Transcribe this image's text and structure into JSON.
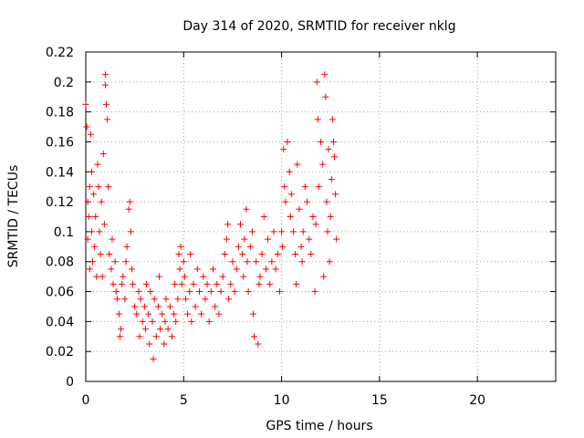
{
  "chart_data": {
    "type": "scatter",
    "title": "Day 314 of 2020, SRMTID for receiver nklg",
    "xlabel": "GPS time / hours",
    "ylabel": "SRMTID / TECUs",
    "xlim": [
      0,
      24
    ],
    "ylim": [
      0,
      0.22
    ],
    "xticks": [
      0,
      5,
      10,
      15,
      20
    ],
    "yticks": [
      0,
      0.02,
      0.04,
      0.06,
      0.08,
      0.1,
      0.12,
      0.14,
      0.16,
      0.18,
      0.2,
      0.22
    ],
    "xtick_labels": [
      "0",
      "5",
      "10",
      "15",
      "20"
    ],
    "ytick_labels": [
      "0",
      "0.02",
      "0.04",
      "0.06",
      "0.08",
      "0.1",
      "0.12",
      "0.14",
      "0.16",
      "0.18",
      "0.2",
      "0.22"
    ],
    "grid": true,
    "legend": "none",
    "marker": "+",
    "color": "#ff0000",
    "series": [
      {
        "points": [
          [
            0.0,
            0.185
          ],
          [
            0.05,
            0.17
          ],
          [
            0.1,
            0.12
          ],
          [
            0.1,
            0.095
          ],
          [
            0.15,
            0.11
          ],
          [
            0.2,
            0.13
          ],
          [
            0.2,
            0.075
          ],
          [
            0.25,
            0.165
          ],
          [
            0.3,
            0.14
          ],
          [
            0.3,
            0.1
          ],
          [
            0.35,
            0.08
          ],
          [
            0.4,
            0.125
          ],
          [
            0.45,
            0.09
          ],
          [
            0.5,
            0.11
          ],
          [
            0.55,
            0.07
          ],
          [
            0.6,
            0.145
          ],
          [
            0.65,
            0.13
          ],
          [
            0.7,
            0.1
          ],
          [
            0.75,
            0.085
          ],
          [
            0.8,
            0.12
          ],
          [
            0.85,
            0.07
          ],
          [
            0.9,
            0.152
          ],
          [
            0.95,
            0.105
          ],
          [
            1.0,
            0.205
          ],
          [
            1.0,
            0.198
          ],
          [
            1.05,
            0.185
          ],
          [
            1.1,
            0.175
          ],
          [
            1.15,
            0.13
          ],
          [
            1.2,
            0.085
          ],
          [
            1.3,
            0.075
          ],
          [
            1.35,
            0.095
          ],
          [
            1.4,
            0.065
          ],
          [
            1.5,
            0.08
          ],
          [
            1.55,
            0.06
          ],
          [
            1.6,
            0.055
          ],
          [
            1.7,
            0.045
          ],
          [
            1.75,
            0.03
          ],
          [
            1.8,
            0.035
          ],
          [
            1.85,
            0.065
          ],
          [
            1.9,
            0.07
          ],
          [
            2.0,
            0.055
          ],
          [
            2.05,
            0.08
          ],
          [
            2.1,
            0.09
          ],
          [
            2.2,
            0.115
          ],
          [
            2.25,
            0.12
          ],
          [
            2.3,
            0.1
          ],
          [
            2.35,
            0.075
          ],
          [
            2.4,
            0.065
          ],
          [
            2.5,
            0.05
          ],
          [
            2.6,
            0.045
          ],
          [
            2.7,
            0.06
          ],
          [
            2.75,
            0.03
          ],
          [
            2.8,
            0.055
          ],
          [
            2.9,
            0.04
          ],
          [
            3.0,
            0.05
          ],
          [
            3.05,
            0.035
          ],
          [
            3.1,
            0.065
          ],
          [
            3.2,
            0.045
          ],
          [
            3.25,
            0.025
          ],
          [
            3.3,
            0.06
          ],
          [
            3.4,
            0.04
          ],
          [
            3.45,
            0.015
          ],
          [
            3.5,
            0.055
          ],
          [
            3.6,
            0.03
          ],
          [
            3.7,
            0.05
          ],
          [
            3.75,
            0.07
          ],
          [
            3.8,
            0.035
          ],
          [
            3.9,
            0.045
          ],
          [
            4.0,
            0.025
          ],
          [
            4.05,
            0.04
          ],
          [
            4.1,
            0.055
          ],
          [
            4.2,
            0.035
          ],
          [
            4.3,
            0.05
          ],
          [
            4.4,
            0.03
          ],
          [
            4.5,
            0.045
          ],
          [
            4.55,
            0.065
          ],
          [
            4.6,
            0.04
          ],
          [
            4.7,
            0.055
          ],
          [
            4.75,
            0.085
          ],
          [
            4.8,
            0.075
          ],
          [
            4.85,
            0.09
          ],
          [
            4.9,
            0.065
          ],
          [
            5.0,
            0.08
          ],
          [
            5.05,
            0.07
          ],
          [
            5.1,
            0.055
          ],
          [
            5.2,
            0.045
          ],
          [
            5.3,
            0.06
          ],
          [
            5.35,
            0.085
          ],
          [
            5.4,
            0.04
          ],
          [
            5.5,
            0.065
          ],
          [
            5.6,
            0.05
          ],
          [
            5.7,
            0.075
          ],
          [
            5.8,
            0.06
          ],
          [
            5.9,
            0.045
          ],
          [
            6.0,
            0.07
          ],
          [
            6.1,
            0.055
          ],
          [
            6.2,
            0.065
          ],
          [
            6.3,
            0.04
          ],
          [
            6.4,
            0.06
          ],
          [
            6.5,
            0.075
          ],
          [
            6.6,
            0.05
          ],
          [
            6.7,
            0.065
          ],
          [
            6.8,
            0.045
          ],
          [
            6.9,
            0.06
          ],
          [
            7.0,
            0.07
          ],
          [
            7.1,
            0.085
          ],
          [
            7.2,
            0.095
          ],
          [
            7.25,
            0.105
          ],
          [
            7.3,
            0.055
          ],
          [
            7.4,
            0.065
          ],
          [
            7.5,
            0.08
          ],
          [
            7.6,
            0.06
          ],
          [
            7.7,
            0.075
          ],
          [
            7.8,
            0.09
          ],
          [
            7.9,
            0.105
          ],
          [
            8.0,
            0.085
          ],
          [
            8.05,
            0.07
          ],
          [
            8.1,
            0.095
          ],
          [
            8.2,
            0.115
          ],
          [
            8.25,
            0.08
          ],
          [
            8.3,
            0.06
          ],
          [
            8.4,
            0.09
          ],
          [
            8.5,
            0.1
          ],
          [
            8.55,
            0.045
          ],
          [
            8.6,
            0.03
          ],
          [
            8.7,
            0.08
          ],
          [
            8.8,
            0.025
          ],
          [
            8.85,
            0.065
          ],
          [
            8.9,
            0.07
          ],
          [
            9.0,
            0.085
          ],
          [
            9.1,
            0.11
          ],
          [
            9.2,
            0.075
          ],
          [
            9.3,
            0.095
          ],
          [
            9.4,
            0.065
          ],
          [
            9.5,
            0.08
          ],
          [
            9.6,
            0.1
          ],
          [
            9.7,
            0.075
          ],
          [
            9.8,
            0.085
          ],
          [
            9.9,
            0.06
          ],
          [
            10.0,
            0.1
          ],
          [
            10.05,
            0.09
          ],
          [
            10.1,
            0.155
          ],
          [
            10.15,
            0.13
          ],
          [
            10.2,
            0.12
          ],
          [
            10.3,
            0.16
          ],
          [
            10.4,
            0.14
          ],
          [
            10.45,
            0.11
          ],
          [
            10.5,
            0.125
          ],
          [
            10.6,
            0.1
          ],
          [
            10.7,
            0.085
          ],
          [
            10.75,
            0.065
          ],
          [
            10.8,
            0.145
          ],
          [
            10.9,
            0.115
          ],
          [
            11.0,
            0.09
          ],
          [
            11.05,
            0.08
          ],
          [
            11.1,
            0.1
          ],
          [
            11.2,
            0.13
          ],
          [
            11.3,
            0.12
          ],
          [
            11.4,
            0.095
          ],
          [
            11.5,
            0.085
          ],
          [
            11.6,
            0.11
          ],
          [
            11.7,
            0.06
          ],
          [
            11.75,
            0.105
          ],
          [
            11.8,
            0.2
          ],
          [
            11.85,
            0.175
          ],
          [
            11.9,
            0.13
          ],
          [
            12.0,
            0.16
          ],
          [
            12.1,
            0.145
          ],
          [
            12.15,
            0.07
          ],
          [
            12.2,
            0.205
          ],
          [
            12.25,
            0.19
          ],
          [
            12.3,
            0.12
          ],
          [
            12.35,
            0.1
          ],
          [
            12.4,
            0.155
          ],
          [
            12.45,
            0.08
          ],
          [
            12.5,
            0.11
          ],
          [
            12.55,
            0.135
          ],
          [
            12.6,
            0.175
          ],
          [
            12.65,
            0.16
          ],
          [
            12.7,
            0.15
          ],
          [
            12.75,
            0.125
          ],
          [
            12.8,
            0.095
          ]
        ]
      }
    ]
  }
}
